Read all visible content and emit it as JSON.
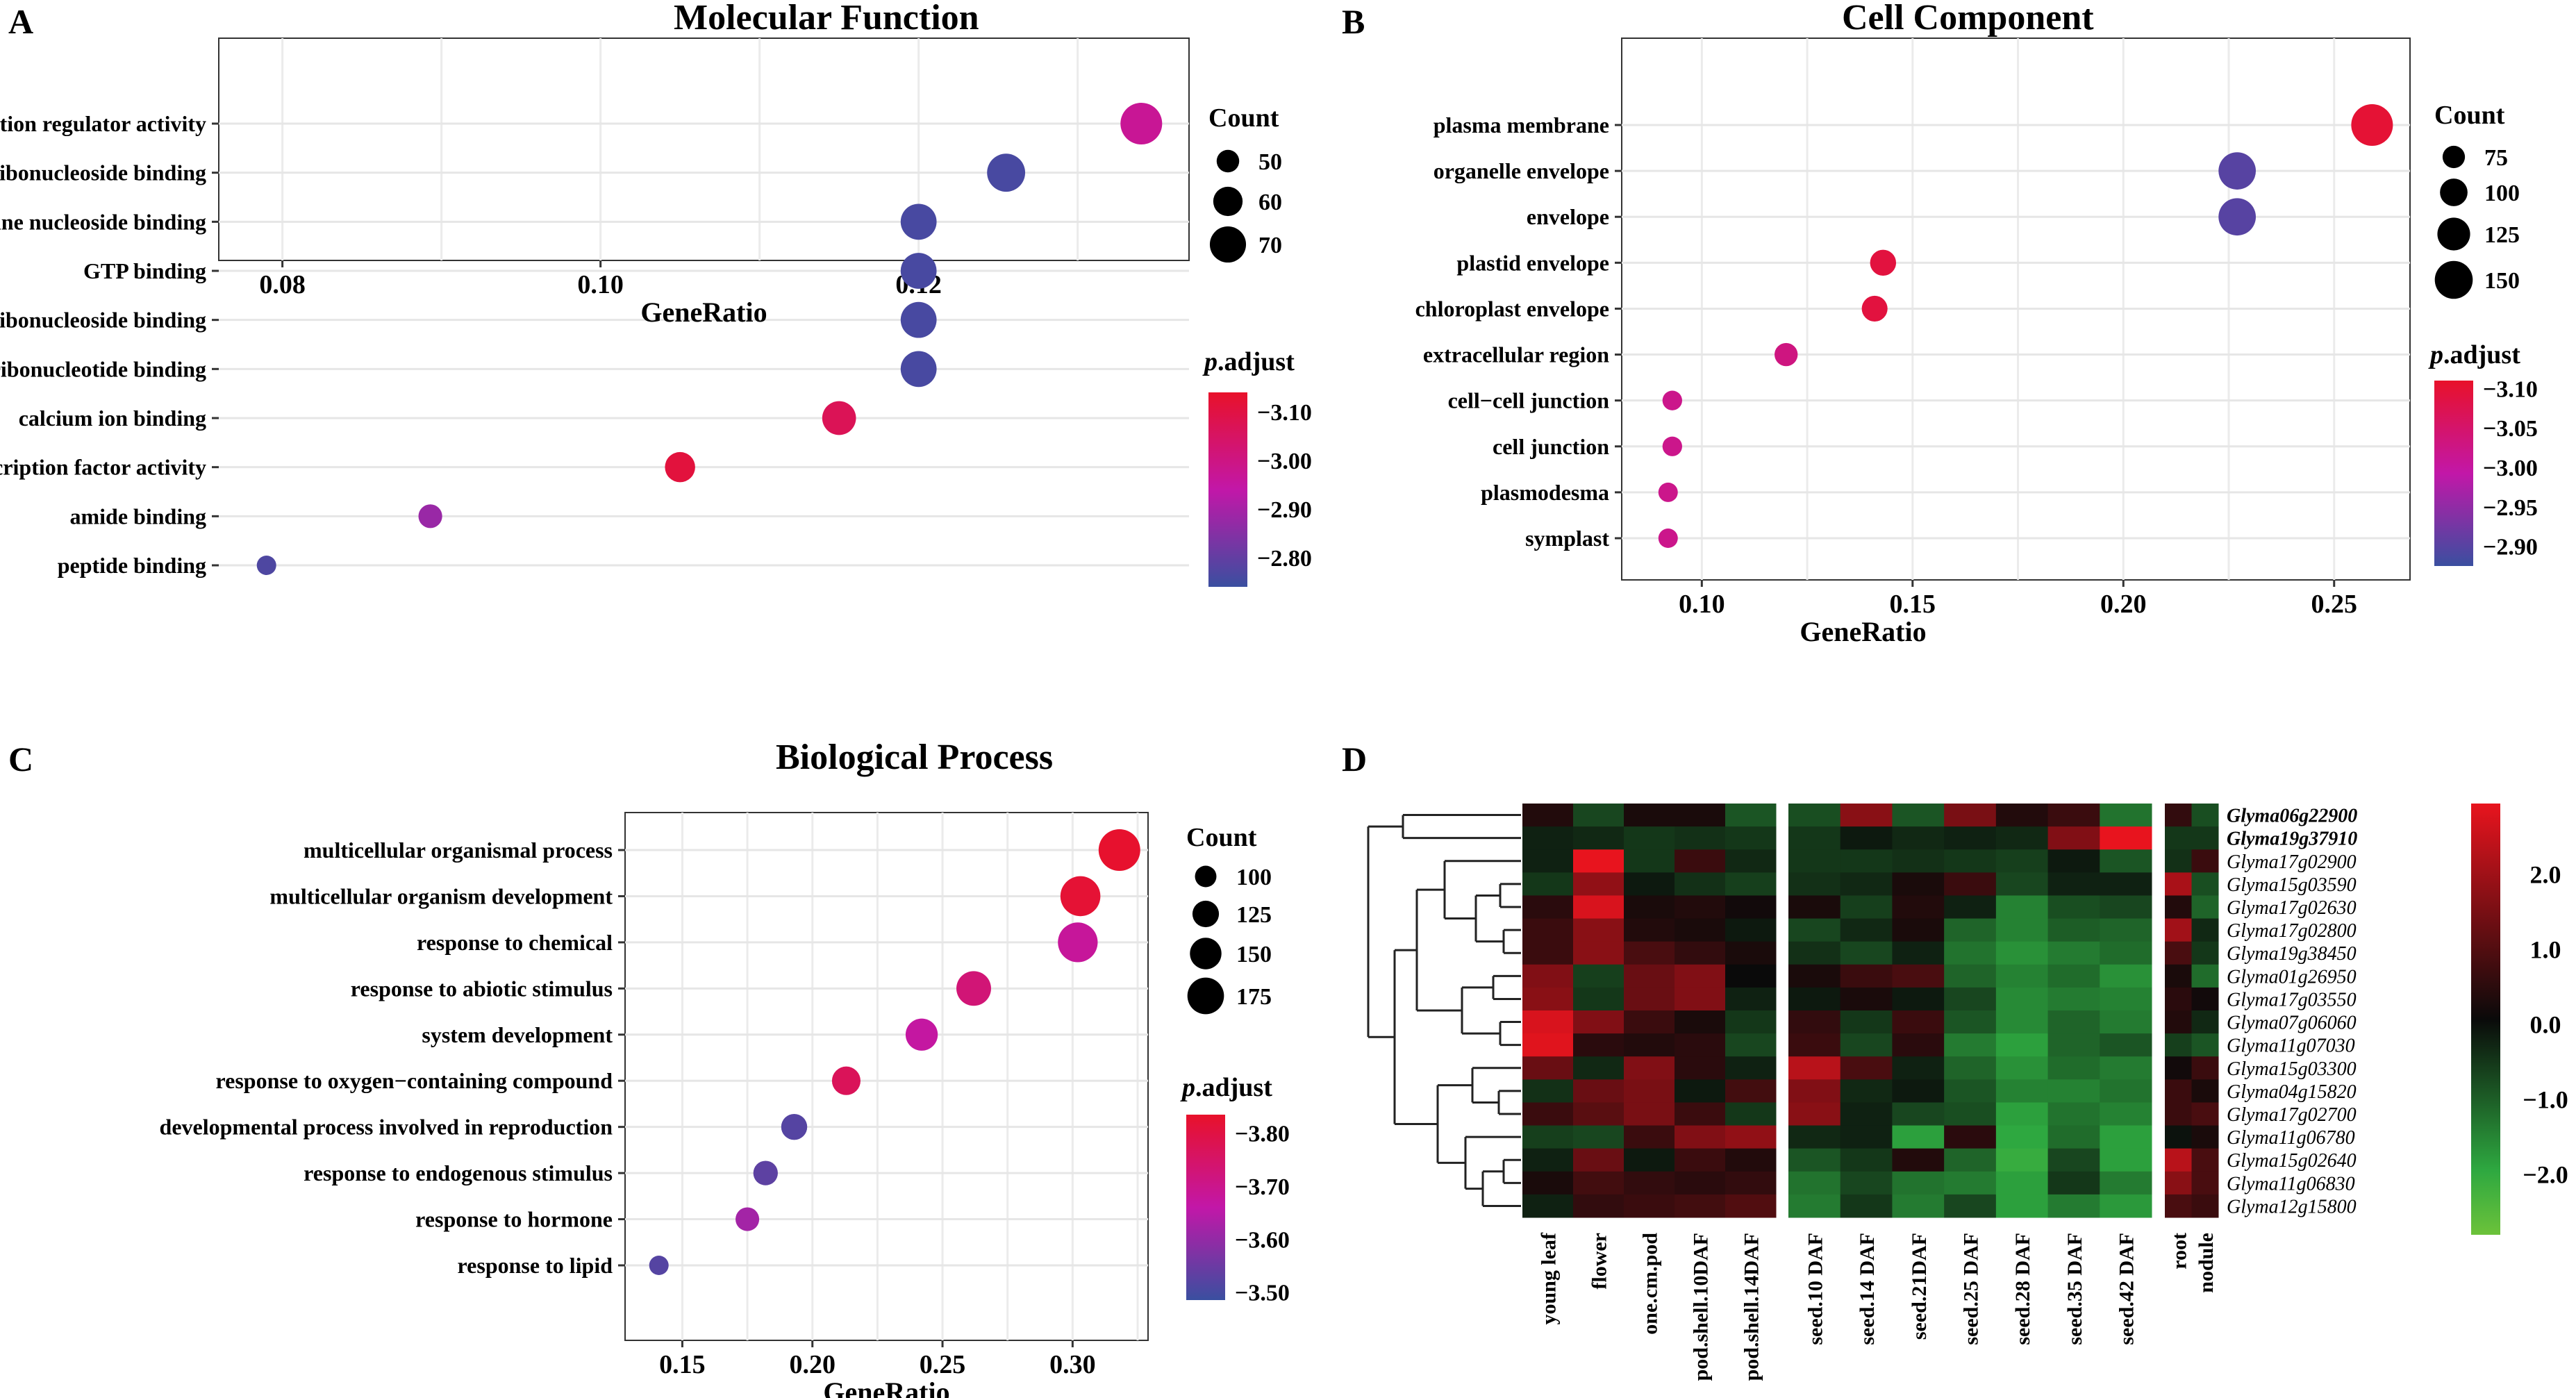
{
  "colors": {
    "low": "#3a4fa0",
    "mid": "#c217a8",
    "high": "#e8112a",
    "heat_neg": "#2ea840",
    "heat_zero": "#0a0a0a",
    "heat_pos": "#e8141e",
    "heat_min": "#6cc23a"
  },
  "panel_letters": {
    "a": "A",
    "b": "B",
    "c": "C",
    "d": "D"
  },
  "chart_data": [
    {
      "panel": "A",
      "type": "scatter",
      "title": "Molecular Function",
      "xlabel": "GeneRatio",
      "xlim": [
        0.076,
        0.137
      ],
      "xticks": [
        0.08,
        0.1,
        0.12
      ],
      "xtick_labels": [
        "0.08",
        "0.10",
        "0.12"
      ],
      "terms": [
        "transcription regulator activity",
        "ribonucleoside binding",
        "purine nucleoside binding",
        "GTP binding",
        "purine ribonucleoside binding",
        "guanyl ribonucleotide binding",
        "calcium ion binding",
        "DNA−binding transcription factor activity",
        "amide binding",
        "peptide binding"
      ],
      "gene_ratio": [
        0.134,
        0.1255,
        0.12,
        0.12,
        0.12,
        0.12,
        0.115,
        0.105,
        0.0893,
        0.079
      ],
      "count": [
        75,
        70,
        67,
        67,
        67,
        67,
        64,
        59,
        50,
        44
      ],
      "p_adjust": [
        -2.97,
        -2.76,
        -2.76,
        -2.76,
        -2.76,
        -2.76,
        -3.07,
        -3.11,
        -2.88,
        -2.77
      ],
      "size_title": "Count",
      "size_legend_values": [
        50,
        60,
        70
      ],
      "size_legend_labels": [
        "50",
        "60",
        "70"
      ],
      "size_range": [
        44,
        75
      ],
      "color_title": "p.adjust",
      "color_title_italic": "p",
      "color_title_rest": ".adjust",
      "color_range": [
        -2.74,
        -3.14
      ],
      "color_ticks": [
        -3.1,
        -3.0,
        -2.9,
        -2.8
      ],
      "color_tick_labels": [
        "−3.10",
        "−3.00",
        "−2.90",
        "−2.80"
      ]
    },
    {
      "panel": "B",
      "type": "scatter",
      "title": "Cell Component",
      "xlabel": "GeneRatio",
      "xlim": [
        0.081,
        0.268
      ],
      "xticks": [
        0.1,
        0.15,
        0.2,
        0.25
      ],
      "xtick_labels": [
        "0.10",
        "0.15",
        "0.20",
        "0.25"
      ],
      "terms": [
        "plasma membrane",
        "organelle envelope",
        "envelope",
        "plastid envelope",
        "chloroplast envelope",
        "extracellular region",
        "cell−cell junction",
        "cell junction",
        "plasmodesma",
        "symplast"
      ],
      "gene_ratio": [
        0.259,
        0.227,
        0.227,
        0.143,
        0.141,
        0.12,
        0.093,
        0.093,
        0.092,
        0.092
      ],
      "count": [
        158,
        138,
        138,
        86,
        85,
        73,
        57,
        57,
        56,
        56
      ],
      "p_adjust": [
        -3.1,
        -2.9,
        -2.9,
        -3.09,
        -3.09,
        -3.03,
        -3.02,
        -3.02,
        -3.02,
        -3.02
      ],
      "size_title": "Count",
      "size_legend_values": [
        75,
        100,
        125,
        150
      ],
      "size_legend_labels": [
        "75",
        "100",
        "125",
        "150"
      ],
      "size_range": [
        56,
        158
      ],
      "color_title": "p.adjust",
      "color_title_italic": "p",
      "color_title_rest": ".adjust",
      "color_range": [
        -2.875,
        -3.11
      ],
      "color_ticks": [
        -3.1,
        -3.05,
        -3.0,
        -2.95,
        -2.9
      ],
      "color_tick_labels": [
        "−3.10",
        "−3.05",
        "−3.00",
        "−2.95",
        "−2.90"
      ]
    },
    {
      "panel": "C",
      "type": "scatter",
      "title": "Biological Process",
      "xlabel": "GeneRatio",
      "xlim": [
        0.128,
        0.329
      ],
      "xticks": [
        0.15,
        0.2,
        0.25,
        0.3
      ],
      "xtick_labels": [
        "0.15",
        "0.20",
        "0.25",
        "0.30"
      ],
      "terms": [
        "multicellular organismal process",
        "multicellular organism development",
        "response to chemical",
        "response to abiotic stimulus",
        "system development",
        "response to oxygen−containing compound",
        "developmental process involved in reproduction",
        "response to endogenous stimulus",
        "response to hormone",
        "response to lipid"
      ],
      "gene_ratio": [
        0.318,
        0.303,
        0.302,
        0.262,
        0.242,
        0.213,
        0.193,
        0.182,
        0.175,
        0.141
      ],
      "count": [
        190,
        182,
        181,
        157,
        145,
        128,
        116,
        109,
        105,
        85
      ],
      "p_adjust": [
        -3.83,
        -3.82,
        -3.68,
        -3.73,
        -3.67,
        -3.77,
        -3.52,
        -3.53,
        -3.62,
        -3.52
      ],
      "size_title": "Count",
      "size_legend_values": [
        100,
        125,
        150,
        175
      ],
      "size_legend_labels": [
        "100",
        "125",
        "150",
        "175"
      ],
      "size_range": [
        85,
        190
      ],
      "color_title": "p.adjust",
      "color_title_italic": "p",
      "color_title_rest": ".adjust",
      "color_range": [
        -3.485,
        -3.835
      ],
      "color_ticks": [
        -3.8,
        -3.7,
        -3.6,
        -3.5
      ],
      "color_tick_labels": [
        "−3.80",
        "−3.70",
        "−3.60",
        "−3.50"
      ]
    },
    {
      "panel": "D",
      "type": "heatmap",
      "column_groups": [
        [
          "young leaf",
          "flower",
          "one.cm.pod",
          "pod.shell.10DAF",
          "pod.shell.14DAF"
        ],
        [
          "seed.10 DAF",
          "seed.14 DAF",
          "seed.21DAF",
          "seed.25 DAF",
          "seed.28 DAF",
          "seed.35 DAF",
          "seed.42 DAF"
        ],
        [
          "root",
          "nodule"
        ]
      ],
      "rows": [
        "Glyma06g22900",
        "Glyma19g37910",
        "Glyma17g02900",
        "Glyma15g03590",
        "Glyma17g02630",
        "Glyma17g02800",
        "Glyma19g38450",
        "Glyma01g26950",
        "Glyma17g03550",
        "Glyma07g06060",
        "Glyma11g07030",
        "Glyma15g03300",
        "Glyma04g15820",
        "Glyma17g02700",
        "Glyma11g06780",
        "Glyma15g02640",
        "Glyma11g06830",
        "Glyma12g15800"
      ],
      "bold_rows": [
        "Glyma06g22900",
        "Glyma19g37910"
      ],
      "values": [
        [
          0.3,
          -0.8,
          0.2,
          0.2,
          -1.0,
          -0.9,
          1.6,
          -1.0,
          1.4,
          0.3,
          0.6,
          -1.4,
          0.5,
          -0.9
        ],
        [
          -0.3,
          -0.4,
          -0.6,
          -0.5,
          -0.6,
          -0.6,
          -0.2,
          -0.4,
          -0.3,
          -0.4,
          1.5,
          2.9,
          -0.6,
          -0.6
        ],
        [
          -0.3,
          2.8,
          -0.6,
          0.6,
          -0.4,
          -0.6,
          -0.6,
          -0.5,
          -0.6,
          -0.7,
          -0.2,
          -1.0,
          -0.5,
          0.6
        ],
        [
          -0.6,
          1.7,
          -0.2,
          -0.5,
          -0.7,
          -0.5,
          -0.4,
          0.2,
          0.6,
          -0.8,
          -0.3,
          -0.3,
          2.0,
          -0.9
        ],
        [
          0.4,
          2.6,
          0.2,
          0.3,
          0.1,
          0.2,
          -0.7,
          0.3,
          -0.3,
          -1.6,
          -0.9,
          -0.8,
          0.3,
          -1.2
        ],
        [
          0.6,
          1.6,
          0.3,
          0.2,
          -0.2,
          -0.8,
          -0.4,
          0.2,
          -1.2,
          -1.6,
          -1.1,
          -1.2,
          1.9,
          -0.4
        ],
        [
          0.6,
          1.6,
          0.8,
          0.5,
          0.2,
          -0.5,
          -0.8,
          -0.3,
          -1.4,
          -1.8,
          -1.5,
          -1.3,
          0.8,
          -0.6
        ],
        [
          1.5,
          -0.7,
          1.2,
          1.5,
          0.0,
          0.2,
          0.6,
          0.8,
          -1.2,
          -1.6,
          -1.3,
          -1.8,
          0.2,
          -1.3
        ],
        [
          1.6,
          -0.6,
          1.2,
          1.5,
          -0.3,
          -0.2,
          0.2,
          -0.2,
          -0.8,
          -1.7,
          -1.5,
          -1.6,
          0.4,
          0.1
        ],
        [
          2.6,
          1.5,
          0.6,
          0.2,
          -0.6,
          0.5,
          -0.6,
          0.6,
          -1.0,
          -1.7,
          -1.2,
          -1.5,
          0.3,
          -0.4
        ],
        [
          2.7,
          0.4,
          0.3,
          0.4,
          -0.8,
          0.6,
          -0.8,
          0.4,
          -1.5,
          -2.0,
          -1.2,
          -1.0,
          -0.7,
          -1.0
        ],
        [
          1.2,
          -0.4,
          1.5,
          0.4,
          -0.3,
          2.2,
          0.8,
          -0.3,
          -1.2,
          -1.8,
          -1.3,
          -1.5,
          0.1,
          0.6
        ],
        [
          -0.5,
          1.2,
          1.4,
          -0.2,
          0.7,
          1.5,
          -0.4,
          -0.2,
          -1.0,
          -1.6,
          -1.6,
          -1.4,
          0.6,
          0.2
        ],
        [
          0.6,
          1.0,
          1.4,
          0.6,
          -0.6,
          1.6,
          -0.3,
          -0.8,
          -0.9,
          -2.0,
          -1.4,
          -1.6,
          0.6,
          0.8
        ],
        [
          -0.7,
          -0.8,
          0.6,
          1.5,
          1.7,
          -0.4,
          -0.3,
          -2.0,
          0.4,
          -2.1,
          -1.3,
          -2.0,
          -0.1,
          0.2
        ],
        [
          -0.3,
          1.2,
          -0.2,
          0.6,
          0.3,
          -1.0,
          -0.6,
          0.3,
          -1.2,
          -2.2,
          -0.8,
          -2.0,
          2.2,
          0.8
        ],
        [
          0.2,
          0.7,
          0.5,
          0.4,
          0.5,
          -1.4,
          -0.8,
          -1.4,
          -1.5,
          -2.0,
          -0.6,
          -1.5,
          1.6,
          0.8
        ],
        [
          -0.3,
          0.5,
          0.6,
          0.7,
          0.9,
          -1.5,
          -0.6,
          -1.5,
          -0.8,
          -2.0,
          -1.5,
          -1.9,
          0.8,
          0.6
        ]
      ],
      "color_range": [
        -2.8,
        2.95
      ],
      "legend_ticks": [
        2.0,
        1.0,
        0.0,
        -1.0,
        -2.0
      ],
      "legend_tick_labels": [
        "2.0",
        "1.0",
        "0.0",
        "−1.0",
        "−2.0"
      ]
    }
  ]
}
